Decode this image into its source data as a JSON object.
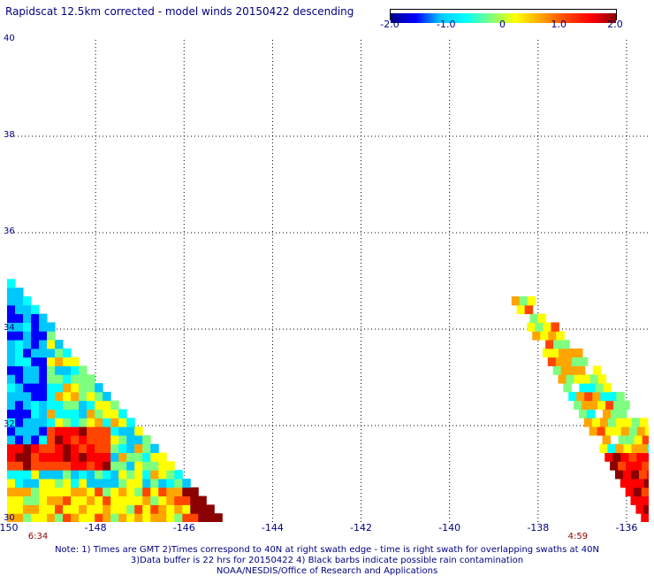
{
  "title": "Rapidscat 12.5km corrected - model winds 20150422 descending",
  "colorbar": {
    "ticks": [
      "-2.0",
      "-1.0",
      "0",
      "1.0",
      "2.0"
    ],
    "colors": [
      "#00008b",
      "#0000ff",
      "#00c8ff",
      "#00ffff",
      "#7fff7f",
      "#ffff00",
      "#ffa500",
      "#ff4500",
      "#ff0000",
      "#8b0000"
    ]
  },
  "axes": {
    "x_labels": [
      "-150",
      "-148",
      "-146",
      "-144",
      "-142",
      "-140",
      "-138",
      "-136"
    ],
    "y_labels": [
      "40",
      "38",
      "36",
      "34",
      "32",
      "30"
    ],
    "lon_range": [
      -150,
      -135.5
    ],
    "lat_range": [
      30,
      40
    ],
    "grid": "dotted"
  },
  "swath_times": [
    {
      "label": "6:34",
      "lon": -149.7
    },
    {
      "label": "4:59",
      "lon": -137.5
    }
  ],
  "notes": [
    "Note: 1) Times are GMT 2)Times correspond to 40N at right swath edge - time is right swath for overlapping swaths at 40N",
    "3)Data buffer is 22 hrs for 20150422 4) Black barbs indicate possible rain contamination",
    "NOAA/NESDIS/Office of Research and Applications"
  ],
  "swaths": [
    {
      "name": "left",
      "edge_top": [
        -150,
        34.9
      ],
      "edge_bottom": [
        -145.3,
        30
      ],
      "value_pattern": "mostly negative (blue-cyan) west, mixed green-yellow, positive (orange-red) near 31N"
    },
    {
      "name": "right",
      "edge_top": [
        -138.6,
        34.5
      ],
      "edge_bottom": [
        -135.5,
        30
      ],
      "value_pattern": "green-yellow north, strongly positive (red/dark red) south"
    }
  ]
}
